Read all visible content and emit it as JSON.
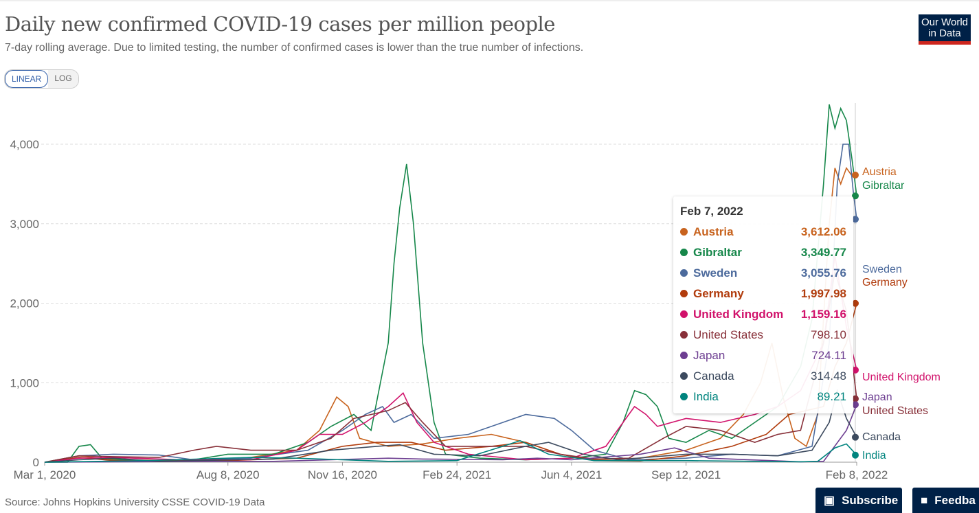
{
  "title": "Daily new confirmed COVID-19 cases per million people",
  "subtitle": "7-day rolling average. Due to limited testing, the number of confirmed cases is lower than the true number of infections.",
  "logo": {
    "line1": "Our World",
    "line2": "in Data"
  },
  "scale_toggle": {
    "linear": "LINEAR",
    "log": "LOG",
    "selected": "LINEAR"
  },
  "source": "Source: Johns Hopkins University CSSE COVID-19 Data",
  "buttons": {
    "subscribe": "Subscribe",
    "feedback": "Feedba"
  },
  "tooltip": {
    "date": "Feb 7, 2022",
    "rows": [
      {
        "name": "Austria",
        "value": "3,612.06"
      },
      {
        "name": "Gibraltar",
        "value": "3,349.77"
      },
      {
        "name": "Sweden",
        "value": "3,055.76"
      },
      {
        "name": "Germany",
        "value": "1,997.98"
      },
      {
        "name": "United Kingdom",
        "value": "1,159.16"
      },
      {
        "name": "United States",
        "value": "798.10"
      },
      {
        "name": "Japan",
        "value": "724.11"
      },
      {
        "name": "Canada",
        "value": "314.48"
      },
      {
        "name": "India",
        "value": "89.21"
      }
    ]
  },
  "chart_data": {
    "type": "line",
    "title": "Daily new confirmed COVID-19 cases per million people",
    "xlabel": "",
    "ylabel": "",
    "x_unit": "days since Mar 1, 2020",
    "xlim": [
      0,
      709
    ],
    "ylim": [
      0,
      4600
    ],
    "yticks": [
      0,
      1000,
      2000,
      3000,
      4000
    ],
    "ytick_labels": [
      "0",
      "1,000",
      "2,000",
      "3,000",
      "4,000"
    ],
    "xticks": [
      0,
      160,
      260,
      360,
      460,
      560,
      709
    ],
    "xtick_labels": [
      "Mar 1, 2020",
      "Aug 8, 2020",
      "Nov 16, 2020",
      "Feb 24, 2021",
      "Jun 4, 2021",
      "Sep 12, 2021",
      "Feb 8, 2022"
    ],
    "grid": "horizontal dashed",
    "series": [
      {
        "name": "Austria",
        "color": "#c8631e",
        "points": [
          [
            0,
            0
          ],
          [
            30,
            80
          ],
          [
            60,
            30
          ],
          [
            120,
            20
          ],
          [
            180,
            60
          ],
          [
            220,
            150
          ],
          [
            240,
            400
          ],
          [
            255,
            820
          ],
          [
            265,
            700
          ],
          [
            275,
            300
          ],
          [
            300,
            200
          ],
          [
            330,
            230
          ],
          [
            360,
            300
          ],
          [
            390,
            350
          ],
          [
            420,
            250
          ],
          [
            450,
            100
          ],
          [
            480,
            30
          ],
          [
            520,
            50
          ],
          [
            560,
            150
          ],
          [
            590,
            300
          ],
          [
            610,
            600
          ],
          [
            625,
            1000
          ],
          [
            635,
            1500
          ],
          [
            645,
            800
          ],
          [
            655,
            300
          ],
          [
            665,
            200
          ],
          [
            675,
            600
          ],
          [
            685,
            3000
          ],
          [
            690,
            3700
          ],
          [
            695,
            3500
          ],
          [
            700,
            3700
          ],
          [
            705,
            3600
          ],
          [
            709,
            3612
          ]
        ]
      },
      {
        "name": "Gibraltar",
        "color": "#16874a",
        "points": [
          [
            0,
            0
          ],
          [
            20,
            0
          ],
          [
            30,
            200
          ],
          [
            40,
            220
          ],
          [
            50,
            50
          ],
          [
            90,
            10
          ],
          [
            130,
            30
          ],
          [
            160,
            100
          ],
          [
            200,
            100
          ],
          [
            230,
            250
          ],
          [
            250,
            450
          ],
          [
            270,
            600
          ],
          [
            285,
            400
          ],
          [
            300,
            1500
          ],
          [
            305,
            2500
          ],
          [
            310,
            3200
          ],
          [
            316,
            3750
          ],
          [
            322,
            3000
          ],
          [
            330,
            1500
          ],
          [
            340,
            500
          ],
          [
            350,
            100
          ],
          [
            380,
            50
          ],
          [
            420,
            30
          ],
          [
            460,
            50
          ],
          [
            490,
            100
          ],
          [
            505,
            500
          ],
          [
            515,
            900
          ],
          [
            525,
            850
          ],
          [
            535,
            700
          ],
          [
            545,
            300
          ],
          [
            560,
            250
          ],
          [
            580,
            400
          ],
          [
            600,
            300
          ],
          [
            620,
            500
          ],
          [
            640,
            700
          ],
          [
            660,
            1200
          ],
          [
            670,
            1800
          ],
          [
            680,
            3500
          ],
          [
            685,
            4500
          ],
          [
            690,
            4200
          ],
          [
            695,
            4450
          ],
          [
            700,
            4300
          ],
          [
            705,
            3800
          ],
          [
            709,
            3350
          ]
        ]
      },
      {
        "name": "Sweden",
        "color": "#4c6a9c",
        "points": [
          [
            0,
            0
          ],
          [
            30,
            80
          ],
          [
            60,
            100
          ],
          [
            100,
            90
          ],
          [
            130,
            30
          ],
          [
            180,
            50
          ],
          [
            230,
            150
          ],
          [
            260,
            400
          ],
          [
            280,
            600
          ],
          [
            295,
            700
          ],
          [
            305,
            500
          ],
          [
            320,
            600
          ],
          [
            340,
            300
          ],
          [
            370,
            350
          ],
          [
            400,
            500
          ],
          [
            420,
            600
          ],
          [
            445,
            550
          ],
          [
            460,
            400
          ],
          [
            480,
            150
          ],
          [
            510,
            30
          ],
          [
            560,
            50
          ],
          [
            600,
            100
          ],
          [
            640,
            80
          ],
          [
            670,
            200
          ],
          [
            685,
            1500
          ],
          [
            692,
            3500
          ],
          [
            697,
            4000
          ],
          [
            702,
            4000
          ],
          [
            706,
            3400
          ],
          [
            709,
            3056
          ]
        ]
      },
      {
        "name": "Germany",
        "color": "#b13c0d",
        "points": [
          [
            0,
            0
          ],
          [
            30,
            60
          ],
          [
            60,
            20
          ],
          [
            150,
            15
          ],
          [
            220,
            50
          ],
          [
            260,
            200
          ],
          [
            290,
            250
          ],
          [
            320,
            250
          ],
          [
            350,
            150
          ],
          [
            390,
            200
          ],
          [
            420,
            250
          ],
          [
            450,
            100
          ],
          [
            480,
            20
          ],
          [
            520,
            15
          ],
          [
            560,
            80
          ],
          [
            600,
            200
          ],
          [
            630,
            350
          ],
          [
            650,
            600
          ],
          [
            665,
            650
          ],
          [
            680,
            700
          ],
          [
            690,
            1200
          ],
          [
            700,
            1500
          ],
          [
            709,
            1998
          ]
        ]
      },
      {
        "name": "United Kingdom",
        "color": "#d1126b",
        "points": [
          [
            0,
            0
          ],
          [
            30,
            50
          ],
          [
            60,
            60
          ],
          [
            120,
            30
          ],
          [
            180,
            30
          ],
          [
            220,
            150
          ],
          [
            240,
            350
          ],
          [
            260,
            350
          ],
          [
            280,
            500
          ],
          [
            300,
            700
          ],
          [
            313,
            870
          ],
          [
            325,
            500
          ],
          [
            340,
            250
          ],
          [
            370,
            100
          ],
          [
            420,
            30
          ],
          [
            460,
            50
          ],
          [
            490,
            200
          ],
          [
            505,
            500
          ],
          [
            515,
            700
          ],
          [
            525,
            600
          ],
          [
            535,
            450
          ],
          [
            560,
            550
          ],
          [
            590,
            500
          ],
          [
            620,
            600
          ],
          [
            640,
            700
          ],
          [
            660,
            900
          ],
          [
            680,
            1500
          ],
          [
            690,
            2600
          ],
          [
            700,
            1700
          ],
          [
            709,
            1159
          ]
        ]
      },
      {
        "name": "United States",
        "color": "#883039",
        "points": [
          [
            0,
            0
          ],
          [
            30,
            80
          ],
          [
            60,
            70
          ],
          [
            100,
            60
          ],
          [
            130,
            150
          ],
          [
            150,
            200
          ],
          [
            180,
            150
          ],
          [
            220,
            150
          ],
          [
            250,
            300
          ],
          [
            270,
            550
          ],
          [
            300,
            650
          ],
          [
            315,
            750
          ],
          [
            330,
            500
          ],
          [
            350,
            200
          ],
          [
            380,
            200
          ],
          [
            420,
            200
          ],
          [
            450,
            100
          ],
          [
            480,
            40
          ],
          [
            510,
            50
          ],
          [
            540,
            300
          ],
          [
            560,
            450
          ],
          [
            590,
            400
          ],
          [
            620,
            250
          ],
          [
            640,
            350
          ],
          [
            660,
            400
          ],
          [
            680,
            1500
          ],
          [
            690,
            2400
          ],
          [
            700,
            1900
          ],
          [
            709,
            798
          ]
        ]
      },
      {
        "name": "Japan",
        "color": "#6d3e91",
        "points": [
          [
            0,
            0
          ],
          [
            150,
            10
          ],
          [
            200,
            10
          ],
          [
            300,
            50
          ],
          [
            330,
            40
          ],
          [
            400,
            30
          ],
          [
            430,
            50
          ],
          [
            460,
            30
          ],
          [
            520,
            100
          ],
          [
            550,
            180
          ],
          [
            580,
            50
          ],
          [
            660,
            5
          ],
          [
            680,
            10
          ],
          [
            700,
            400
          ],
          [
            709,
            724
          ]
        ]
      },
      {
        "name": "Canada",
        "color": "#3c4a5e",
        "points": [
          [
            0,
            0
          ],
          [
            30,
            30
          ],
          [
            60,
            50
          ],
          [
            100,
            10
          ],
          [
            200,
            40
          ],
          [
            250,
            150
          ],
          [
            290,
            200
          ],
          [
            310,
            220
          ],
          [
            340,
            100
          ],
          [
            380,
            80
          ],
          [
            420,
            200
          ],
          [
            440,
            250
          ],
          [
            470,
            100
          ],
          [
            500,
            30
          ],
          [
            560,
            100
          ],
          [
            600,
            100
          ],
          [
            640,
            80
          ],
          [
            670,
            150
          ],
          [
            685,
            500
          ],
          [
            692,
            900
          ],
          [
            700,
            550
          ],
          [
            709,
            314
          ]
        ]
      },
      {
        "name": "India",
        "color": "#00847e",
        "points": [
          [
            0,
            0
          ],
          [
            90,
            20
          ],
          [
            180,
            60
          ],
          [
            220,
            50
          ],
          [
            300,
            10
          ],
          [
            360,
            20
          ],
          [
            400,
            200
          ],
          [
            415,
            270
          ],
          [
            440,
            100
          ],
          [
            480,
            20
          ],
          [
            560,
            20
          ],
          [
            660,
            5
          ],
          [
            675,
            10
          ],
          [
            690,
            180
          ],
          [
            700,
            230
          ],
          [
            709,
            89
          ]
        ]
      }
    ]
  }
}
